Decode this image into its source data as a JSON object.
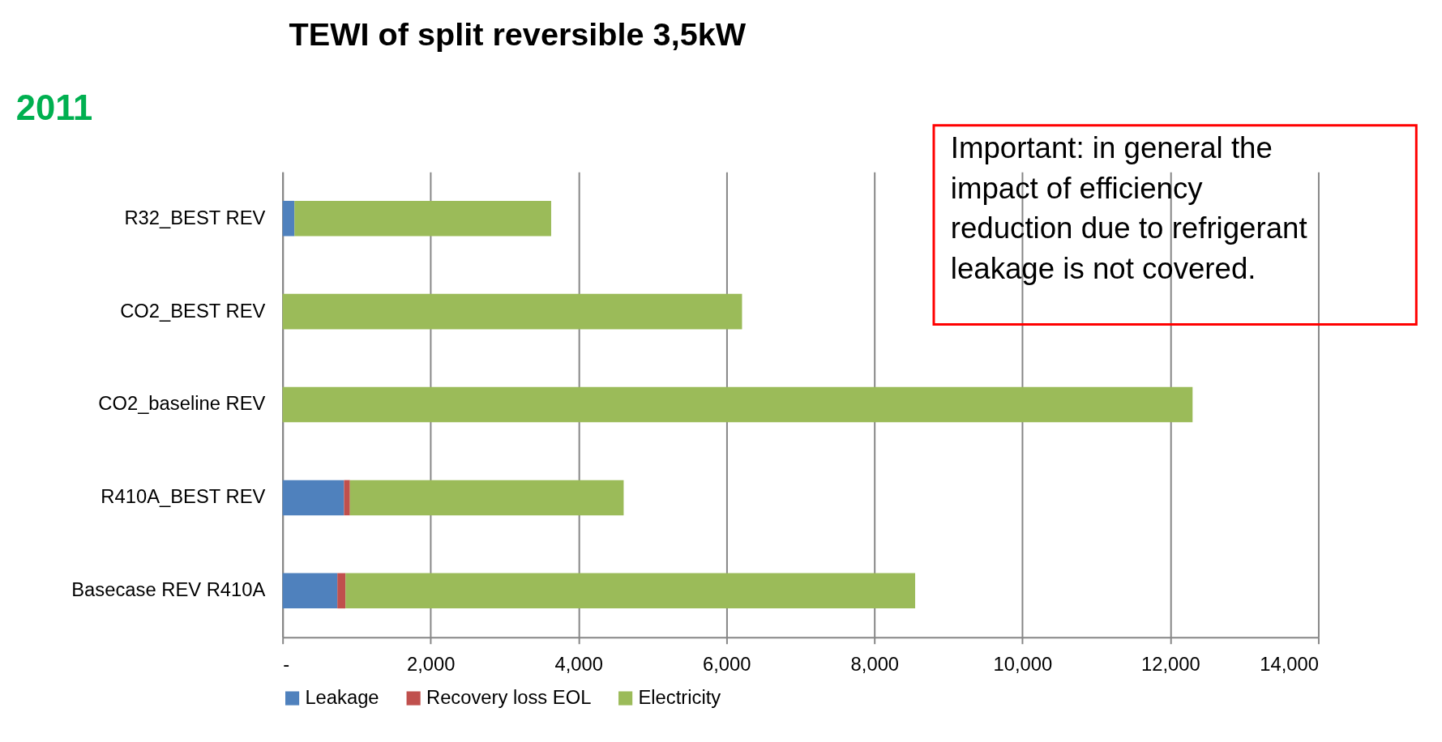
{
  "chart_data": {
    "type": "bar",
    "orientation": "horizontal",
    "stacked": true,
    "title": "TEWI of split reversible 3,5kW",
    "categories": [
      "R32_BEST REV",
      "CO2_BEST REV",
      "CO2_baseline REV",
      "R410A_BEST REV",
      "Basecase REV R410A"
    ],
    "series": [
      {
        "name": "Leakage",
        "color": "#4f81bd",
        "values": [
          160,
          0,
          0,
          830,
          740
        ]
      },
      {
        "name": "Recovery loss EOL",
        "color": "#c0504d",
        "values": [
          0,
          0,
          0,
          80,
          110
        ]
      },
      {
        "name": "Electricity",
        "color": "#9bbb59",
        "values": [
          3470,
          6210,
          12300,
          3700,
          7700
        ]
      }
    ],
    "xlim": [
      0,
      14000
    ],
    "xticks": [
      {
        "value": 0,
        "label": "-"
      },
      {
        "value": 2000,
        "label": "2,000"
      },
      {
        "value": 4000,
        "label": "4,000"
      },
      {
        "value": 6000,
        "label": "6,000"
      },
      {
        "value": 8000,
        "label": "8,000"
      },
      {
        "value": 10000,
        "label": "10,000"
      },
      {
        "value": 12000,
        "label": "12,000"
      },
      {
        "value": 14000,
        "label": "14,000"
      }
    ],
    "grid": "x",
    "legend": "bottom",
    "annotations": [
      "2011",
      "Important: in general the\nimpact of efficiency\nreduction due to refrigerant\nleakage is not covered."
    ]
  }
}
